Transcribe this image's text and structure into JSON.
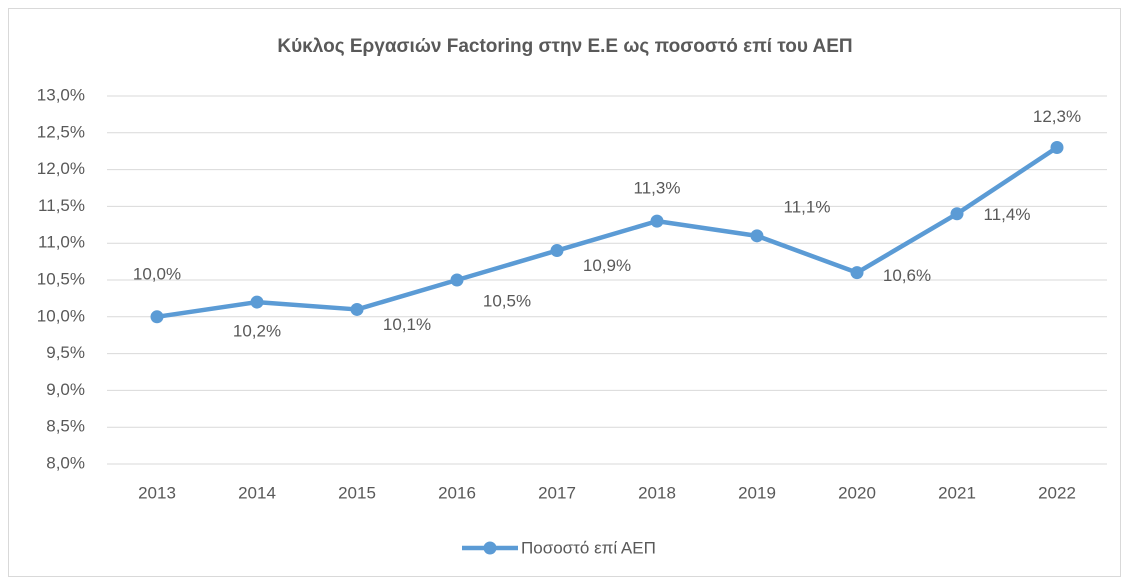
{
  "chart_data": {
    "type": "line",
    "title": "Κύκλος Εργασιών Factoring στην Ε.Ε ως ποσοστό επί του ΑΕΠ",
    "categories": [
      "2013",
      "2014",
      "2015",
      "2016",
      "2017",
      "2018",
      "2019",
      "2020",
      "2021",
      "2022"
    ],
    "series": [
      {
        "name": "Ποσοστό επί ΑΕΠ",
        "color": "#5b9bd5",
        "values": [
          10.0,
          10.2,
          10.1,
          10.5,
          10.9,
          11.3,
          11.1,
          10.6,
          11.4,
          12.3
        ],
        "value_labels": [
          "10,0%",
          "10,2%",
          "10,1%",
          "10,5%",
          "10,9%",
          "11,3%",
          "11,1%",
          "10,6%",
          "11,4%",
          "12,3%"
        ]
      }
    ],
    "ylim": [
      8.0,
      13.0
    ],
    "yticks": [
      {
        "value": 8.0,
        "label": "8,0%"
      },
      {
        "value": 8.5,
        "label": "8,5%"
      },
      {
        "value": 9.0,
        "label": "9,0%"
      },
      {
        "value": 9.5,
        "label": "9,5%"
      },
      {
        "value": 10.0,
        "label": "10,0%"
      },
      {
        "value": 10.5,
        "label": "10,5%"
      },
      {
        "value": 11.0,
        "label": "11,0%"
      },
      {
        "value": 11.5,
        "label": "11,5%"
      },
      {
        "value": 12.0,
        "label": "12,0%"
      },
      {
        "value": 12.5,
        "label": "12,5%"
      },
      {
        "value": 13.0,
        "label": "13,0%"
      }
    ],
    "grid": true,
    "legend": "bottom"
  }
}
